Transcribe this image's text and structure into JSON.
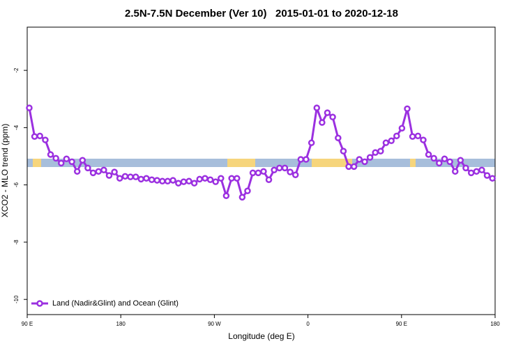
{
  "chart_data": {
    "type": "line",
    "title": "2.5N-7.5N December (Ver 10)   2015-01-01 to 2020-12-18",
    "x_label": "Longitude (deg E)",
    "y_label": "XCO2 - MLO trend (ppm)",
    "x": [
      92.0,
      97.1,
      102.2,
      107.4,
      112.5,
      117.6,
      122.7,
      127.8,
      133.0,
      138.1,
      143.2,
      148.3,
      153.4,
      158.6,
      163.7,
      168.8,
      173.9,
      179.0,
      184.2,
      189.3,
      194.4,
      199.5,
      204.6,
      209.8,
      214.9,
      220.0,
      225.1,
      230.2,
      235.4,
      240.5,
      245.6,
      250.7,
      255.8,
      261.0,
      266.1,
      271.2,
      276.3,
      281.4,
      286.6,
      291.7,
      296.8,
      301.9,
      307.0,
      312.2,
      317.3,
      322.4,
      327.5,
      332.6,
      337.8,
      342.9,
      348.0,
      353.1,
      358.2,
      363.4,
      368.5,
      373.6,
      378.7,
      383.8,
      389.0,
      394.1,
      399.2,
      404.3,
      409.4,
      414.6,
      419.7,
      424.8,
      429.9,
      435.0,
      440.2,
      445.3,
      450.4,
      455.5,
      460.6,
      465.8,
      470.9,
      476.0,
      481.1,
      486.2,
      491.4,
      496.5,
      501.6,
      506.7,
      511.8,
      517.0,
      522.1,
      527.2,
      532.3,
      537.4
    ],
    "series": [
      {
        "name": "Land (Nadir&Glint) and Ocean (Glint)",
        "color": "#9b30e0",
        "values": [
          -3.31,
          -4.31,
          -4.29,
          -4.43,
          -4.94,
          -5.07,
          -5.24,
          -5.09,
          -5.19,
          -5.53,
          -5.14,
          -5.41,
          -5.58,
          -5.53,
          -5.48,
          -5.67,
          -5.55,
          -5.77,
          -5.7,
          -5.72,
          -5.72,
          -5.8,
          -5.77,
          -5.82,
          -5.84,
          -5.87,
          -5.87,
          -5.84,
          -5.94,
          -5.89,
          -5.87,
          -5.94,
          -5.8,
          -5.77,
          -5.82,
          -5.89,
          -5.77,
          -6.38,
          -5.77,
          -5.77,
          -6.43,
          -6.21,
          -5.58,
          -5.58,
          -5.53,
          -5.82,
          -5.48,
          -5.41,
          -5.41,
          -5.55,
          -5.65,
          -5.11,
          -5.11,
          -4.53,
          -3.31,
          -3.82,
          -3.48,
          -3.63,
          -4.36,
          -4.82,
          -5.36,
          -5.36,
          -5.11,
          -5.19,
          -5.04,
          -4.87,
          -4.82,
          -4.53,
          -4.46,
          -4.29,
          -4.02,
          -3.34,
          -4.31,
          -4.29,
          -4.43,
          -4.94,
          -5.07,
          -5.24,
          -5.09,
          -5.19,
          -5.53,
          -5.14,
          -5.41,
          -5.58,
          -5.53,
          -5.48,
          -5.67,
          -5.77
        ]
      }
    ],
    "xlim": [
      90,
      540
    ],
    "xticks": [
      {
        "value": 90,
        "label": "90 E"
      },
      180,
      {
        "value": 270,
        "label": "90 W"
      },
      {
        "value": 360,
        "label": "0"
      },
      {
        "value": 450,
        "label": "90 E"
      },
      {
        "value": 540,
        "label": "180"
      }
    ],
    "ylim": [
      -10.53,
      -0.49
    ],
    "yticks": [
      -2,
      -4,
      -6,
      -8,
      -10
    ],
    "grid": false,
    "legend": "bottom left"
  }
}
